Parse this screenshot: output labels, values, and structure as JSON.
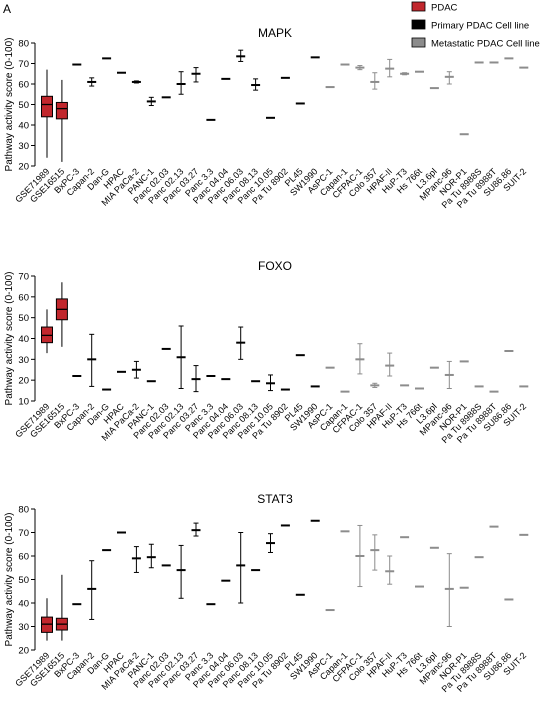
{
  "panel_label": "A",
  "legend": {
    "position": "top-right",
    "entries": [
      {
        "label": "PDAC",
        "color": "#c1272d"
      },
      {
        "label": "Primary PDAC Cell line",
        "color": "#000000"
      },
      {
        "label": "Metastatic PDAC Cell line",
        "color": "#8c8c8c"
      }
    ]
  },
  "chart_data": [
    {
      "type": "box",
      "title": "MAPK",
      "xlabel": "",
      "ylabel": "Pathway activity score (0-100)",
      "ylim": [
        20,
        80
      ],
      "yticks": [
        20,
        30,
        40,
        50,
        60,
        70,
        80
      ],
      "categories": [
        "GSE71989",
        "GSE16515",
        "BxPC-3",
        "Capan-2",
        "Dan-G",
        "HPAC",
        "MIA PaCa-2",
        "PANC-1",
        "Panc 02.03",
        "Panc 02.13",
        "Panc 03.27",
        "Panc 3.3",
        "Panc 04.04",
        "Panc 06.03",
        "Panc 08.13",
        "Panc 10.05",
        "Pa Tu 8902",
        "PL45",
        "SW1990",
        "AsPC-1",
        "Capan-1",
        "CFPAC-1",
        "Colo 357",
        "HPAF-II",
        "HuP-T3",
        "Hs 766t",
        "L3.6pl",
        "MPanc-96",
        "NOR-P1",
        "Pa Tu 8988S",
        "Pa Tu 8988T",
        "SU86.86",
        "SUIT-2"
      ],
      "groups": [
        "PDAC",
        "PDAC",
        "Primary",
        "Primary",
        "Primary",
        "Primary",
        "Primary",
        "Primary",
        "Primary",
        "Primary",
        "Primary",
        "Primary",
        "Primary",
        "Primary",
        "Primary",
        "Primary",
        "Primary",
        "Primary",
        "Primary",
        "Metastatic",
        "Metastatic",
        "Metastatic",
        "Metastatic",
        "Metastatic",
        "Metastatic",
        "Metastatic",
        "Metastatic",
        "Metastatic",
        "Metastatic",
        "Metastatic",
        "Metastatic",
        "Metastatic",
        "Metastatic"
      ],
      "boxes": [
        {
          "min": 24,
          "q1": 44,
          "median": 50,
          "q3": 54,
          "max": 67
        },
        {
          "min": 22,
          "q1": 43,
          "median": 48,
          "q3": 51,
          "max": 62
        }
      ],
      "means": [
        null,
        null,
        69.5,
        61,
        72.5,
        65.5,
        61,
        51.5,
        53.5,
        60,
        65,
        42.5,
        62.5,
        73.5,
        59.5,
        43.5,
        63,
        50.5,
        73,
        58.5,
        69.5,
        68,
        61,
        67.5,
        65,
        66,
        58,
        63.5,
        35.5,
        70.5,
        70.5,
        72.5,
        68
      ],
      "err_low": [
        null,
        null,
        69.5,
        59,
        72.5,
        65.5,
        60.5,
        49.5,
        53.5,
        55,
        61,
        42.5,
        62.5,
        71,
        57,
        43.5,
        63,
        50.5,
        73,
        58.5,
        69.5,
        67,
        57.5,
        63.5,
        64.5,
        66,
        58,
        60,
        35.5,
        70.5,
        70.5,
        72.5,
        68
      ],
      "err_high": [
        null,
        null,
        69.5,
        63,
        72.5,
        65.5,
        61.5,
        53.5,
        53.5,
        66,
        68,
        42.5,
        62.5,
        76.5,
        62.5,
        43.5,
        63,
        50.5,
        73,
        58.5,
        69.5,
        69,
        65.5,
        72,
        65.5,
        66,
        58,
        66,
        35.5,
        70.5,
        70.5,
        72.5,
        68
      ]
    },
    {
      "type": "box",
      "title": "FOXO",
      "xlabel": "",
      "ylabel": "Pathway activity score (0-100)",
      "ylim": [
        10,
        70
      ],
      "yticks": [
        10,
        20,
        30,
        40,
        50,
        60,
        70
      ],
      "categories": [
        "GSE71989",
        "GSE16515",
        "BxPC-3",
        "Capan-2",
        "Dan-G",
        "HPAC",
        "MIA PaCa-2",
        "PANC-1",
        "Panc 02.03",
        "Panc 02.13",
        "Panc 03.27",
        "Panc 3.3",
        "Panc 04.04",
        "Panc 06.03",
        "Panc 08.13",
        "Panc 10.05",
        "Pa Tu 8902",
        "PL45",
        "SW1990",
        "AsPC-1",
        "Capan-1",
        "CFPAC-1",
        "Colo 357",
        "HPAF-II",
        "HuP-T3",
        "Hs 766t",
        "L3.6pl",
        "MPanc-96",
        "NOR-P1",
        "Pa Tu 8988S",
        "Pa Tu 8988T",
        "SU86.86",
        "SUIT-2"
      ],
      "groups": [
        "PDAC",
        "PDAC",
        "Primary",
        "Primary",
        "Primary",
        "Primary",
        "Primary",
        "Primary",
        "Primary",
        "Primary",
        "Primary",
        "Primary",
        "Primary",
        "Primary",
        "Primary",
        "Primary",
        "Primary",
        "Primary",
        "Primary",
        "Metastatic",
        "Metastatic",
        "Metastatic",
        "Metastatic",
        "Metastatic",
        "Metastatic",
        "Metastatic",
        "Metastatic",
        "Metastatic",
        "Metastatic",
        "Metastatic",
        "Metastatic",
        "Metastatic",
        "Metastatic"
      ],
      "boxes": [
        {
          "min": 33,
          "q1": 38,
          "median": 41.5,
          "q3": 45.5,
          "max": 54
        },
        {
          "min": 36,
          "q1": 49,
          "median": 54,
          "q3": 59,
          "max": 67
        }
      ],
      "means": [
        null,
        null,
        22,
        30,
        15.5,
        24,
        25,
        19.5,
        35,
        31,
        20.5,
        22,
        20.5,
        38,
        19.5,
        18.5,
        15.5,
        32,
        17,
        26,
        14.5,
        30,
        17.5,
        27,
        17.5,
        16,
        26,
        22.5,
        29,
        17,
        14.5,
        34,
        17
      ],
      "err_low": [
        null,
        null,
        22,
        17,
        15.5,
        24,
        21,
        19.5,
        35,
        16,
        14.5,
        22,
        20.5,
        30,
        19.5,
        15,
        15.5,
        32,
        17,
        26,
        14.5,
        23,
        16.5,
        22,
        17.5,
        16,
        26,
        16,
        29,
        17,
        14.5,
        34,
        17
      ],
      "err_high": [
        null,
        null,
        22,
        42,
        15.5,
        24,
        29,
        19.5,
        35,
        46,
        27,
        22,
        20.5,
        45.5,
        19.5,
        22.5,
        15.5,
        32,
        17,
        26,
        14.5,
        37.5,
        18.5,
        33,
        17.5,
        16,
        26,
        29,
        29,
        17,
        14.5,
        34,
        17
      ]
    },
    {
      "type": "box",
      "title": "STAT3",
      "xlabel": "",
      "ylabel": "Pathway activity score (0-100)",
      "ylim": [
        20,
        80
      ],
      "yticks": [
        20,
        30,
        40,
        50,
        60,
        70,
        80
      ],
      "categories": [
        "GSE71989",
        "GSE16515",
        "BxPC-3",
        "Capan-2",
        "Dan-G",
        "HPAC",
        "MIA PaCa-2",
        "PANC-1",
        "Panc 02.03",
        "Panc 02.13",
        "Panc 03.27",
        "Panc 3.3",
        "Panc 04.04",
        "Panc 06.03",
        "Panc 08.13",
        "Panc 10.05",
        "Pa Tu 8902",
        "PL45",
        "SW1990",
        "AsPC-1",
        "Capan-1",
        "CFPAC-1",
        "Colo 357",
        "HPAF-II",
        "HuP-T3",
        "Hs 766t",
        "L3.6pl",
        "MPanc-96",
        "NOR-P1",
        "Pa Tu 8988S",
        "Pa Tu 8988T",
        "SU86.86",
        "SUIT-2"
      ],
      "groups": [
        "PDAC",
        "PDAC",
        "Primary",
        "Primary",
        "Primary",
        "Primary",
        "Primary",
        "Primary",
        "Primary",
        "Primary",
        "Primary",
        "Primary",
        "Primary",
        "Primary",
        "Primary",
        "Primary",
        "Primary",
        "Primary",
        "Primary",
        "Metastatic",
        "Metastatic",
        "Metastatic",
        "Metastatic",
        "Metastatic",
        "Metastatic",
        "Metastatic",
        "Metastatic",
        "Metastatic",
        "Metastatic",
        "Metastatic",
        "Metastatic",
        "Metastatic",
        "Metastatic"
      ],
      "boxes": [
        {
          "min": 24,
          "q1": 27.5,
          "median": 31,
          "q3": 34,
          "max": 42
        },
        {
          "min": 24,
          "q1": 28.5,
          "median": 31,
          "q3": 33.5,
          "max": 52
        }
      ],
      "means": [
        null,
        null,
        39.5,
        46,
        62.5,
        70,
        59,
        59.5,
        56,
        54,
        71,
        39.5,
        49.5,
        56,
        54,
        65.5,
        73,
        43.5,
        75,
        37,
        70.5,
        60,
        62.5,
        53.5,
        68,
        47,
        63.5,
        46,
        46.5,
        59.5,
        72.5,
        41.5,
        69
      ],
      "err_low": [
        null,
        null,
        39.5,
        33,
        62.5,
        70,
        53,
        55,
        56,
        42,
        68.5,
        39.5,
        49.5,
        40,
        54,
        61.5,
        73,
        43.5,
        75,
        37,
        70.5,
        47,
        54,
        48,
        68,
        47,
        63.5,
        30,
        46.5,
        59.5,
        72.5,
        41.5,
        69
      ],
      "err_high": [
        null,
        null,
        39.5,
        58,
        62.5,
        70,
        64,
        65,
        56,
        64.5,
        74,
        39.5,
        49.5,
        70,
        54,
        69.5,
        73,
        43.5,
        75,
        37,
        70.5,
        73,
        69,
        60,
        68,
        47,
        63.5,
        61,
        46.5,
        59.5,
        72.5,
        41.5,
        69
      ]
    }
  ]
}
